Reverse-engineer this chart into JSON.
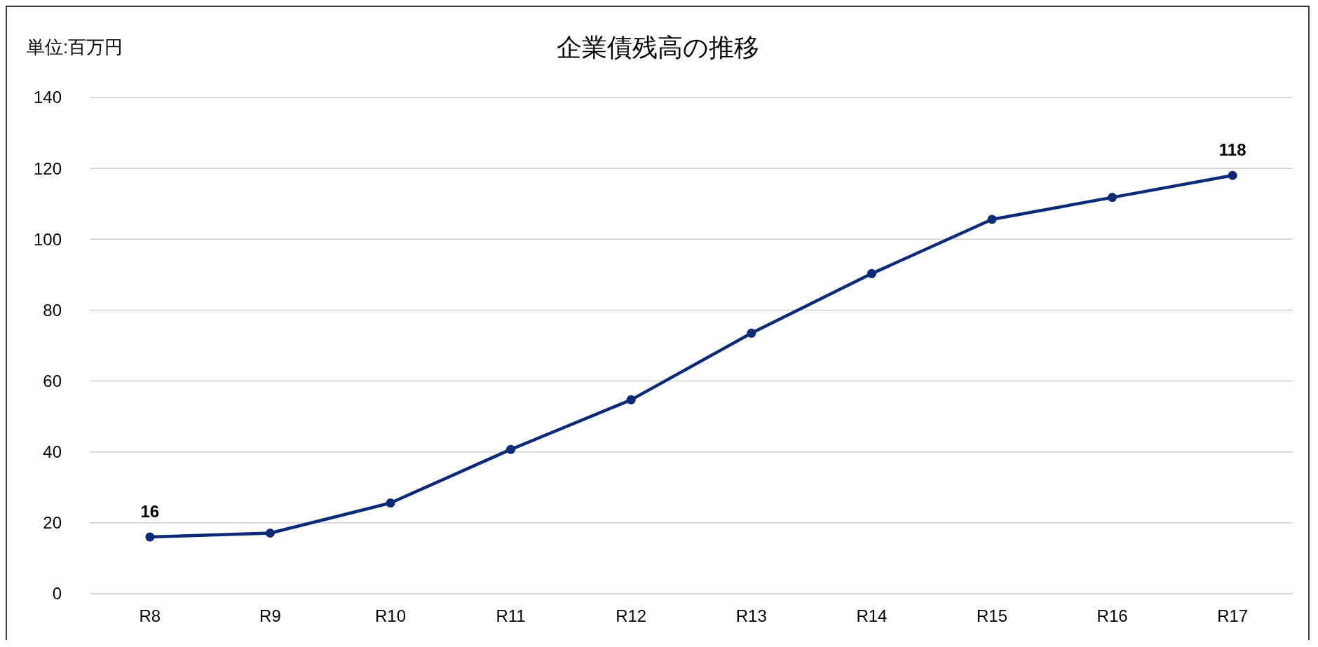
{
  "chart_data": {
    "type": "line",
    "title": "企業債残高の推移",
    "annotations": [
      "単位:百万円"
    ],
    "categories": [
      "R8",
      "R9",
      "R10",
      "R11",
      "R12",
      "R13",
      "R14",
      "R15",
      "R16",
      "R17"
    ],
    "series": [
      {
        "color": "#0b2a78",
        "values": [
          16,
          17.1,
          25.6,
          40.7,
          54.7,
          73.5,
          90.3,
          105.6,
          111.8,
          118
        ],
        "value_labels": [
          "16",
          null,
          null,
          null,
          null,
          null,
          null,
          null,
          null,
          "118"
        ]
      }
    ],
    "ylim": [
      0,
      140
    ],
    "yticks": [
      0,
      20,
      40,
      60,
      80,
      100,
      120,
      140
    ],
    "grid": "y",
    "marker": "circle",
    "line_style": "solid"
  }
}
